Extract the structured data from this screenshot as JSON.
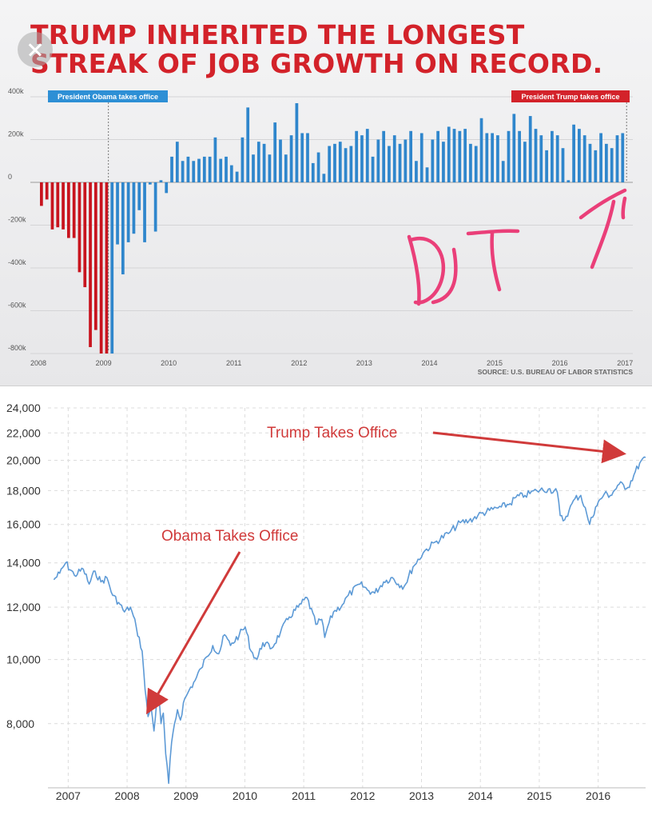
{
  "chart_data": [
    {
      "type": "bar",
      "title": "TRUMP INHERITED THE LONGEST STREAK OF JOB GROWTH ON RECORD.",
      "source": "SOURCE: U.S. BUREAU OF LABOR STATISTICS",
      "ylim": [
        -800000,
        400000
      ],
      "y_ticks": [
        "400k",
        "200k",
        "0",
        "-200k",
        "-400k",
        "-600k",
        "-800k"
      ],
      "y_tick_values": [
        400000,
        200000,
        0,
        -200000,
        -400000,
        -600000,
        -800000
      ],
      "x_ticks": [
        "2008",
        "2009",
        "2010",
        "2011",
        "2012",
        "2013",
        "2014",
        "2015",
        "2016",
        "2017"
      ],
      "annotations": [
        {
          "label": "President Obama takes office",
          "x": "2009-01",
          "color": "#2d8fd5"
        },
        {
          "label": "President Trump takes office",
          "x": "2017-01",
          "color": "#d3222a"
        }
      ],
      "handwriting": [
        "DJT",
        "T"
      ],
      "colors": {
        "bush": "#c8141e",
        "obama": "#2f86cc",
        "trump": "#d3222a"
      },
      "series": [
        {
          "start": "2008-01",
          "values": [
            -110000,
            -80000,
            -220000,
            -210000,
            -220000,
            -260000,
            -260000,
            -420000,
            -490000,
            -770000,
            -690000,
            -800000,
            -800000,
            -800000,
            -290000,
            -430000,
            -280000,
            -240000,
            -130000,
            -280000,
            -10000,
            -230000,
            10000,
            -50000,
            120000,
            190000,
            100000,
            120000,
            100000,
            110000,
            120000,
            120000,
            210000,
            110000,
            120000,
            80000,
            50000,
            210000,
            350000,
            130000,
            190000,
            180000,
            130000,
            280000,
            200000,
            130000,
            220000,
            370000,
            230000,
            230000,
            90000,
            140000,
            40000,
            170000,
            180000,
            190000,
            160000,
            170000,
            240000,
            220000,
            250000,
            120000,
            200000,
            240000,
            170000,
            220000,
            180000,
            200000,
            240000,
            100000,
            230000,
            70000,
            200000,
            240000,
            190000,
            260000,
            250000,
            240000,
            250000,
            180000,
            170000,
            300000,
            230000,
            230000,
            220000,
            100000,
            240000,
            320000,
            240000,
            190000,
            310000,
            250000,
            220000,
            150000,
            240000,
            220000,
            160000,
            10000,
            270000,
            250000,
            220000,
            180000,
            150000,
            230000,
            180000,
            160000,
            220000,
            230000
          ]
        }
      ]
    },
    {
      "type": "line",
      "y_ticks": [
        "24,000",
        "22,000",
        "20,000",
        "18,000",
        "16,000",
        "14,000",
        "12,000",
        "10,000",
        "8,000"
      ],
      "y_tick_values": [
        24000,
        22000,
        20000,
        18000,
        16000,
        14000,
        12000,
        10000,
        8000
      ],
      "y_scale": "log",
      "ylim": [
        6400,
        24000
      ],
      "x_ticks": [
        "2007",
        "2008",
        "2009",
        "2010",
        "2011",
        "2012",
        "2013",
        "2014",
        "2015",
        "2016"
      ],
      "x_tick_values": [
        2007,
        2008,
        2009,
        2010,
        2011,
        2012,
        2013,
        2014,
        2015,
        2016
      ],
      "xlim": [
        2006.9,
        2017.05
      ],
      "grid": true,
      "color": "#5d9ad6",
      "annotations": [
        {
          "label": "Obama Takes Office",
          "color": "#d03a3a"
        },
        {
          "label": "Trump Takes Office",
          "color": "#d03a3a"
        }
      ],
      "x": [
        2007.0,
        2007.1,
        2007.2,
        2007.35,
        2007.5,
        2007.6,
        2007.7,
        2007.8,
        2007.9,
        2008.0,
        2008.1,
        2008.2,
        2008.3,
        2008.4,
        2008.5,
        2008.55,
        2008.6,
        2008.65,
        2008.7,
        2008.75,
        2008.78,
        2008.82,
        2008.86,
        2008.9,
        2008.95,
        2009.0,
        2009.05,
        2009.1,
        2009.15,
        2009.2,
        2009.3,
        2009.4,
        2009.5,
        2009.6,
        2009.7,
        2009.8,
        2009.9,
        2010.0,
        2010.15,
        2010.25,
        2010.35,
        2010.45,
        2010.55,
        2010.7,
        2010.85,
        2011.0,
        2011.15,
        2011.3,
        2011.45,
        2011.55,
        2011.6,
        2011.65,
        2011.75,
        2011.9,
        2012.0,
        2012.2,
        2012.35,
        2012.45,
        2012.6,
        2012.75,
        2012.85,
        2012.95,
        2013.1,
        2013.3,
        2013.5,
        2013.7,
        2013.9,
        2014.05,
        2014.2,
        2014.4,
        2014.6,
        2014.75,
        2014.85,
        2015.0,
        2015.2,
        2015.4,
        2015.55,
        2015.6,
        2015.65,
        2015.75,
        2015.85,
        2015.95,
        2016.05,
        2016.1,
        2016.2,
        2016.35,
        2016.45,
        2016.6,
        2016.75,
        2016.85,
        2016.95,
        2017.05
      ],
      "values": [
        13200,
        13500,
        14000,
        13400,
        13700,
        13000,
        13600,
        13100,
        13300,
        12500,
        12200,
        11800,
        12000,
        11200,
        10300,
        9000,
        8200,
        8500,
        7800,
        8700,
        8800,
        8000,
        8300,
        7200,
        6500,
        7500,
        8000,
        8400,
        8100,
        8600,
        9000,
        9300,
        9700,
        10100,
        10500,
        10200,
        10900,
        10500,
        10900,
        11200,
        10300,
        10000,
        10600,
        10400,
        11000,
        11600,
        12000,
        12400,
        11300,
        11500,
        10800,
        11200,
        11800,
        12100,
        12500,
        13000,
        12700,
        12600,
        13100,
        13300,
        13000,
        12900,
        13800,
        14600,
        15100,
        15500,
        16100,
        16200,
        16500,
        16800,
        17000,
        17200,
        17600,
        17700,
        18000,
        18100,
        17900,
        16500,
        16200,
        16800,
        17500,
        17700,
        16600,
        16000,
        17000,
        17800,
        17700,
        18400,
        18200,
        19000,
        19800,
        20200
      ]
    }
  ]
}
